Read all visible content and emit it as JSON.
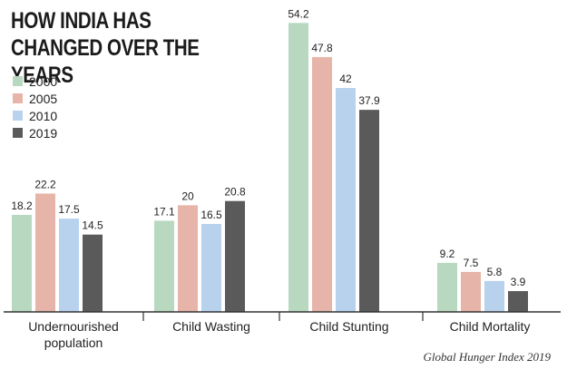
{
  "chart_data": {
    "type": "bar",
    "title": "HOW INDIA HAS CHANGED OVER THE YEARS",
    "categories": [
      "Undernourished population",
      "Child Wasting",
      "Child Stunting",
      "Child Mortality"
    ],
    "series": [
      {
        "name": "2000",
        "color": "#b8d8c0",
        "values": [
          18.2,
          17.1,
          54.2,
          9.2
        ]
      },
      {
        "name": "2005",
        "color": "#e6b4a8",
        "values": [
          22.2,
          20,
          47.8,
          7.5
        ]
      },
      {
        "name": "2010",
        "color": "#b8d2ee",
        "values": [
          17.5,
          16.5,
          42,
          5.8
        ]
      },
      {
        "name": "2019",
        "color": "#5a5a5a",
        "values": [
          14.5,
          20.8,
          37.9,
          3.9
        ]
      }
    ],
    "legend_placement": "top-left",
    "grid": false,
    "source": "Global Hunger Index 2019"
  }
}
